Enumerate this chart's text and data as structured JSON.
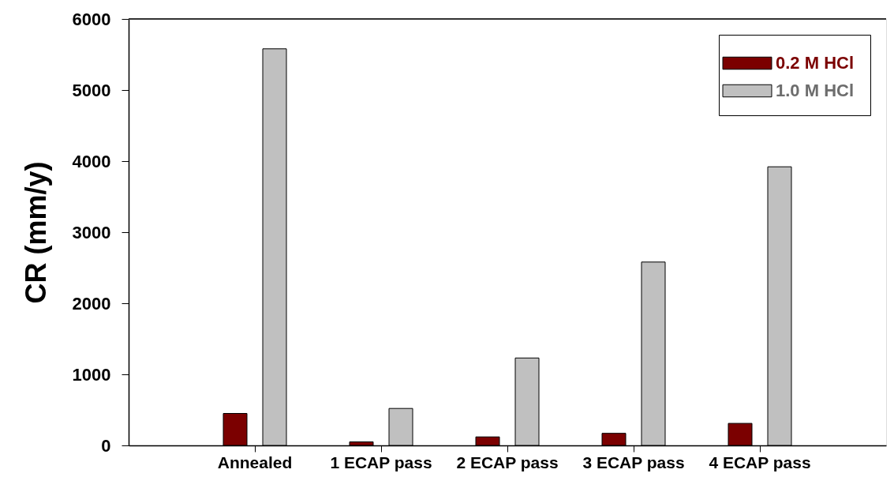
{
  "chart_data": {
    "type": "bar",
    "categories": [
      "Annealed",
      "1 ECAP pass",
      "2 ECAP pass",
      "3 ECAP pass",
      "4 ECAP pass"
    ],
    "series": [
      {
        "name": "0.2 M HCl",
        "color": "#7b0000",
        "values": [
          450,
          50,
          120,
          170,
          310
        ]
      },
      {
        "name": "1.0 M HCl",
        "color": "#c0c0c0",
        "values": [
          5580,
          520,
          1230,
          2580,
          3920
        ]
      }
    ],
    "ylabel": "CR (mm/y)",
    "ylim": [
      0,
      6000
    ],
    "yticks": [
      0,
      1000,
      2000,
      3000,
      4000,
      5000,
      6000
    ],
    "legend": "top right"
  }
}
